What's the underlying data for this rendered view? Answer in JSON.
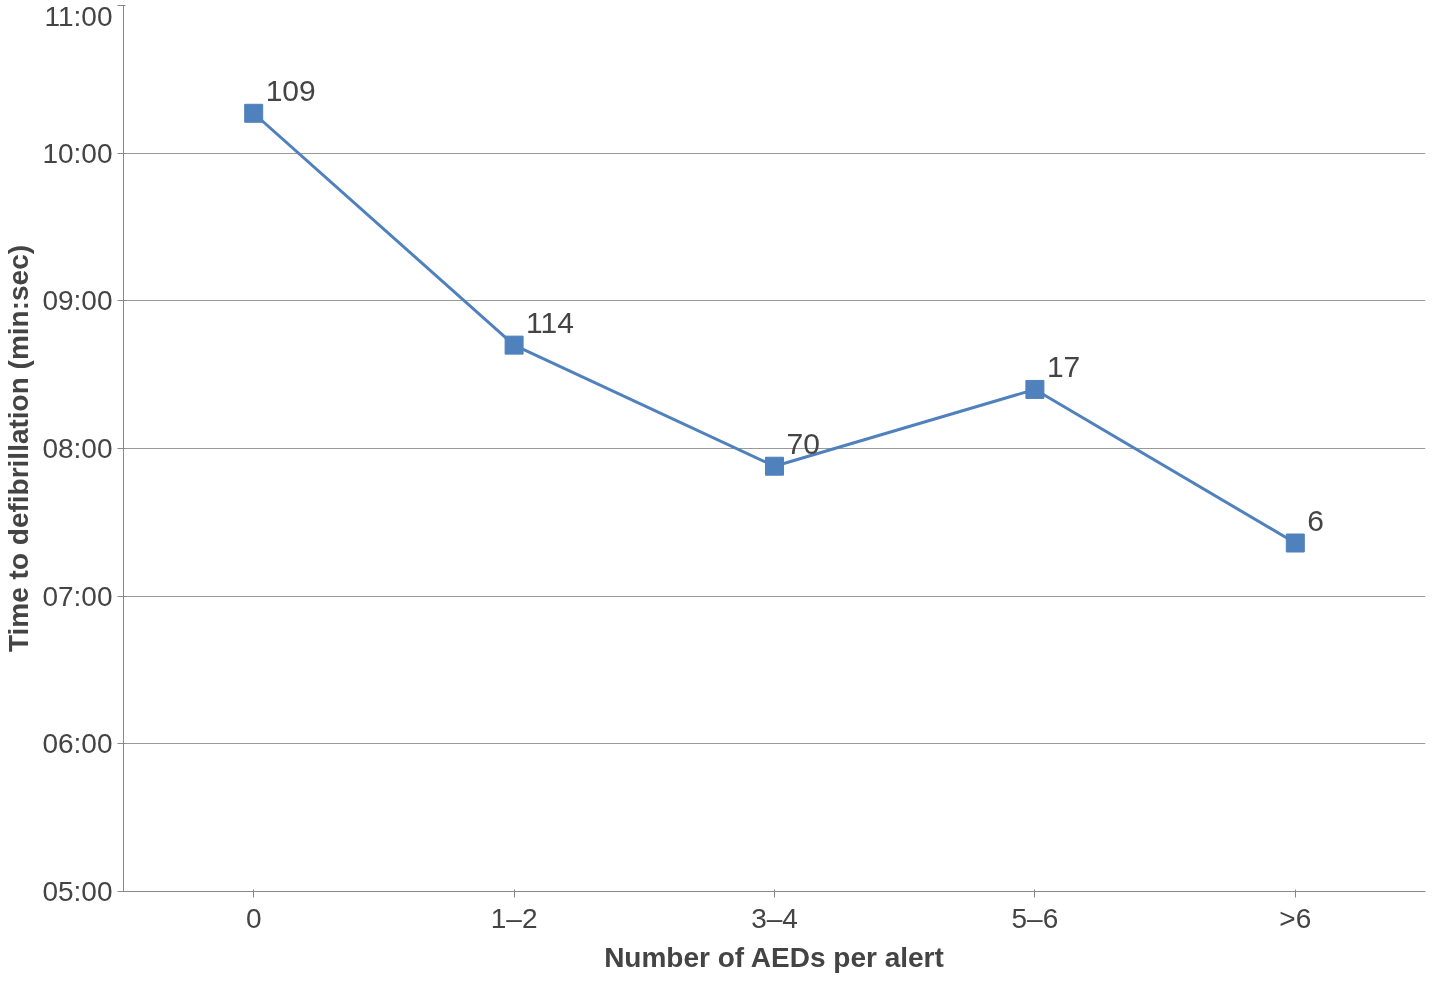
{
  "chart_data": {
    "type": "line",
    "xlabel": "Number of AEDs per alert",
    "ylabel": "Time to defibrillation (min:sec)",
    "categories": [
      "0",
      "1–2",
      "3–4",
      "5–6",
      ">6"
    ],
    "series": [
      {
        "color": "#4f81bd",
        "values": [
          10.27,
          8.7,
          7.88,
          8.4,
          7.36
        ]
      }
    ],
    "annotations": [
      {
        "text": "109",
        "x": "0",
        "y": 10.27
      },
      {
        "text": "114",
        "x": "1–2",
        "y": 8.7
      },
      {
        "text": "70",
        "x": "3–4",
        "y": 7.88
      },
      {
        "text": "17",
        "x": "5–6",
        "y": 8.4
      },
      {
        "text": "6",
        "x": ">6",
        "y": 7.36
      }
    ],
    "ylim": [
      5,
      11
    ],
    "yticks": [
      {
        "value": 5,
        "label": "05:00"
      },
      {
        "value": 6,
        "label": "06:00"
      },
      {
        "value": 7,
        "label": "07:00"
      },
      {
        "value": 8,
        "label": "08:00"
      },
      {
        "value": 9,
        "label": "09:00"
      },
      {
        "value": 10,
        "label": "10:00"
      },
      {
        "value": 11,
        "label": "11:00"
      }
    ],
    "grid": "y",
    "marker": "square",
    "line_style": "solid"
  }
}
